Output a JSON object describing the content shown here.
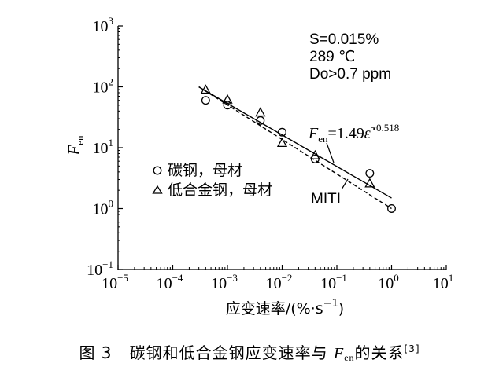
{
  "chart_data": {
    "type": "scatter",
    "x_scale": "log",
    "y_scale": "log",
    "xlim": [
      1e-05,
      10
    ],
    "ylim": [
      0.1,
      1000
    ],
    "x_ticks": [
      {
        "base": "10",
        "exp": "−5",
        "value": 1e-05
      },
      {
        "base": "10",
        "exp": "−4",
        "value": 0.0001
      },
      {
        "base": "10",
        "exp": "−3",
        "value": 0.001
      },
      {
        "base": "10",
        "exp": "−2",
        "value": 0.01
      },
      {
        "base": "10",
        "exp": "−1",
        "value": 0.1
      },
      {
        "base": "10",
        "exp": "0",
        "value": 1
      },
      {
        "base": "10",
        "exp": "1",
        "value": 10
      }
    ],
    "y_ticks": [
      {
        "base": "10",
        "exp": "−1",
        "value": 0.1
      },
      {
        "base": "10",
        "exp": "0",
        "value": 1
      },
      {
        "base": "10",
        "exp": "1",
        "value": 10
      },
      {
        "base": "10",
        "exp": "2",
        "value": 100
      },
      {
        "base": "10",
        "exp": "3",
        "value": 1000
      }
    ],
    "xlabel_main": "应变速率/(%·s",
    "xlabel_exp": "−1",
    "xlabel_close": ")",
    "ylabel_main": "F",
    "ylabel_sub": "en",
    "conditions": [
      "S=0.015%",
      "289 ℃",
      "Do>0.7 ppm"
    ],
    "series": [
      {
        "name": "碳钢，母材",
        "marker": "circle",
        "x": [
          0.0004,
          0.001,
          0.004,
          0.01,
          0.04,
          0.4,
          1.0
        ],
        "y": [
          60,
          50,
          28,
          18,
          6.5,
          3.8,
          1.0
        ]
      },
      {
        "name": "低合金钢，母材",
        "marker": "triangle",
        "x": [
          0.0004,
          0.001,
          0.004,
          0.01,
          0.04,
          0.4
        ],
        "y": [
          90,
          62,
          38,
          12,
          7.5,
          2.6
        ]
      }
    ],
    "lines": [
      {
        "name": "Fen=1.49ε̇^−0.518",
        "style": "solid",
        "formula": {
          "coef": 1.49,
          "exp": -0.518
        },
        "x_range": [
          0.0003,
          1.0
        ]
      },
      {
        "name": "MITI",
        "style": "dashed",
        "x": [
          0.0003,
          1.0
        ],
        "y": [
          100,
          1.0
        ]
      }
    ],
    "fit_label": {
      "prefix": "F",
      "sub": "en",
      "eq": "=1.49",
      "eps": "ε̇",
      "exp": "−0.518"
    },
    "miti_label": "MITI",
    "grid": false,
    "legend_position": "center-left"
  },
  "caption": {
    "figure": "图 3",
    "text_before": "碳钢和低合金钢应变速率与 ",
    "f_main": "F",
    "f_sub": "en",
    "text_after": "的关系",
    "ref": "[3]"
  }
}
